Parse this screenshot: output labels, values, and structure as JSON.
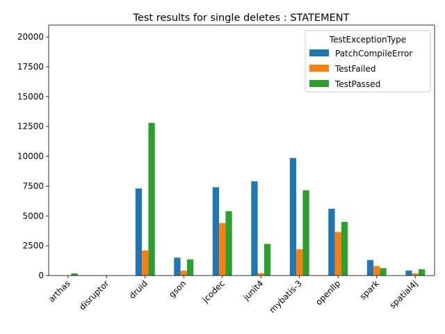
{
  "chart_data": {
    "type": "bar",
    "title": "Test results for single deletes : STATEMENT",
    "xlabel": "",
    "ylabel": "",
    "categories": [
      "arthas",
      "disruptor",
      "druid",
      "gson",
      "jcodec",
      "junit4",
      "mybatis-3",
      "openllp",
      "spark",
      "spatial4j"
    ],
    "series": [
      {
        "name": "PatchCompileError",
        "color": "#1f77b4",
        "values": [
          0,
          0,
          7300,
          1500,
          7400,
          7900,
          9850,
          5600,
          1300,
          420
        ]
      },
      {
        "name": "TestFailed",
        "color": "#ff7f0e",
        "values": [
          0,
          0,
          2100,
          400,
          4400,
          200,
          2200,
          3650,
          800,
          180
        ]
      },
      {
        "name": "TestPassed",
        "color": "#2ca02c",
        "values": [
          180,
          0,
          12800,
          1350,
          5400,
          2650,
          7150,
          4500,
          620,
          530
        ]
      }
    ],
    "ylim": [
      0,
      21000
    ],
    "yticks": [
      0,
      2500,
      5000,
      7500,
      10000,
      12500,
      15000,
      17500,
      20000
    ],
    "legend": {
      "title": "TestExceptionType",
      "position": "top-right"
    },
    "grid": false
  }
}
